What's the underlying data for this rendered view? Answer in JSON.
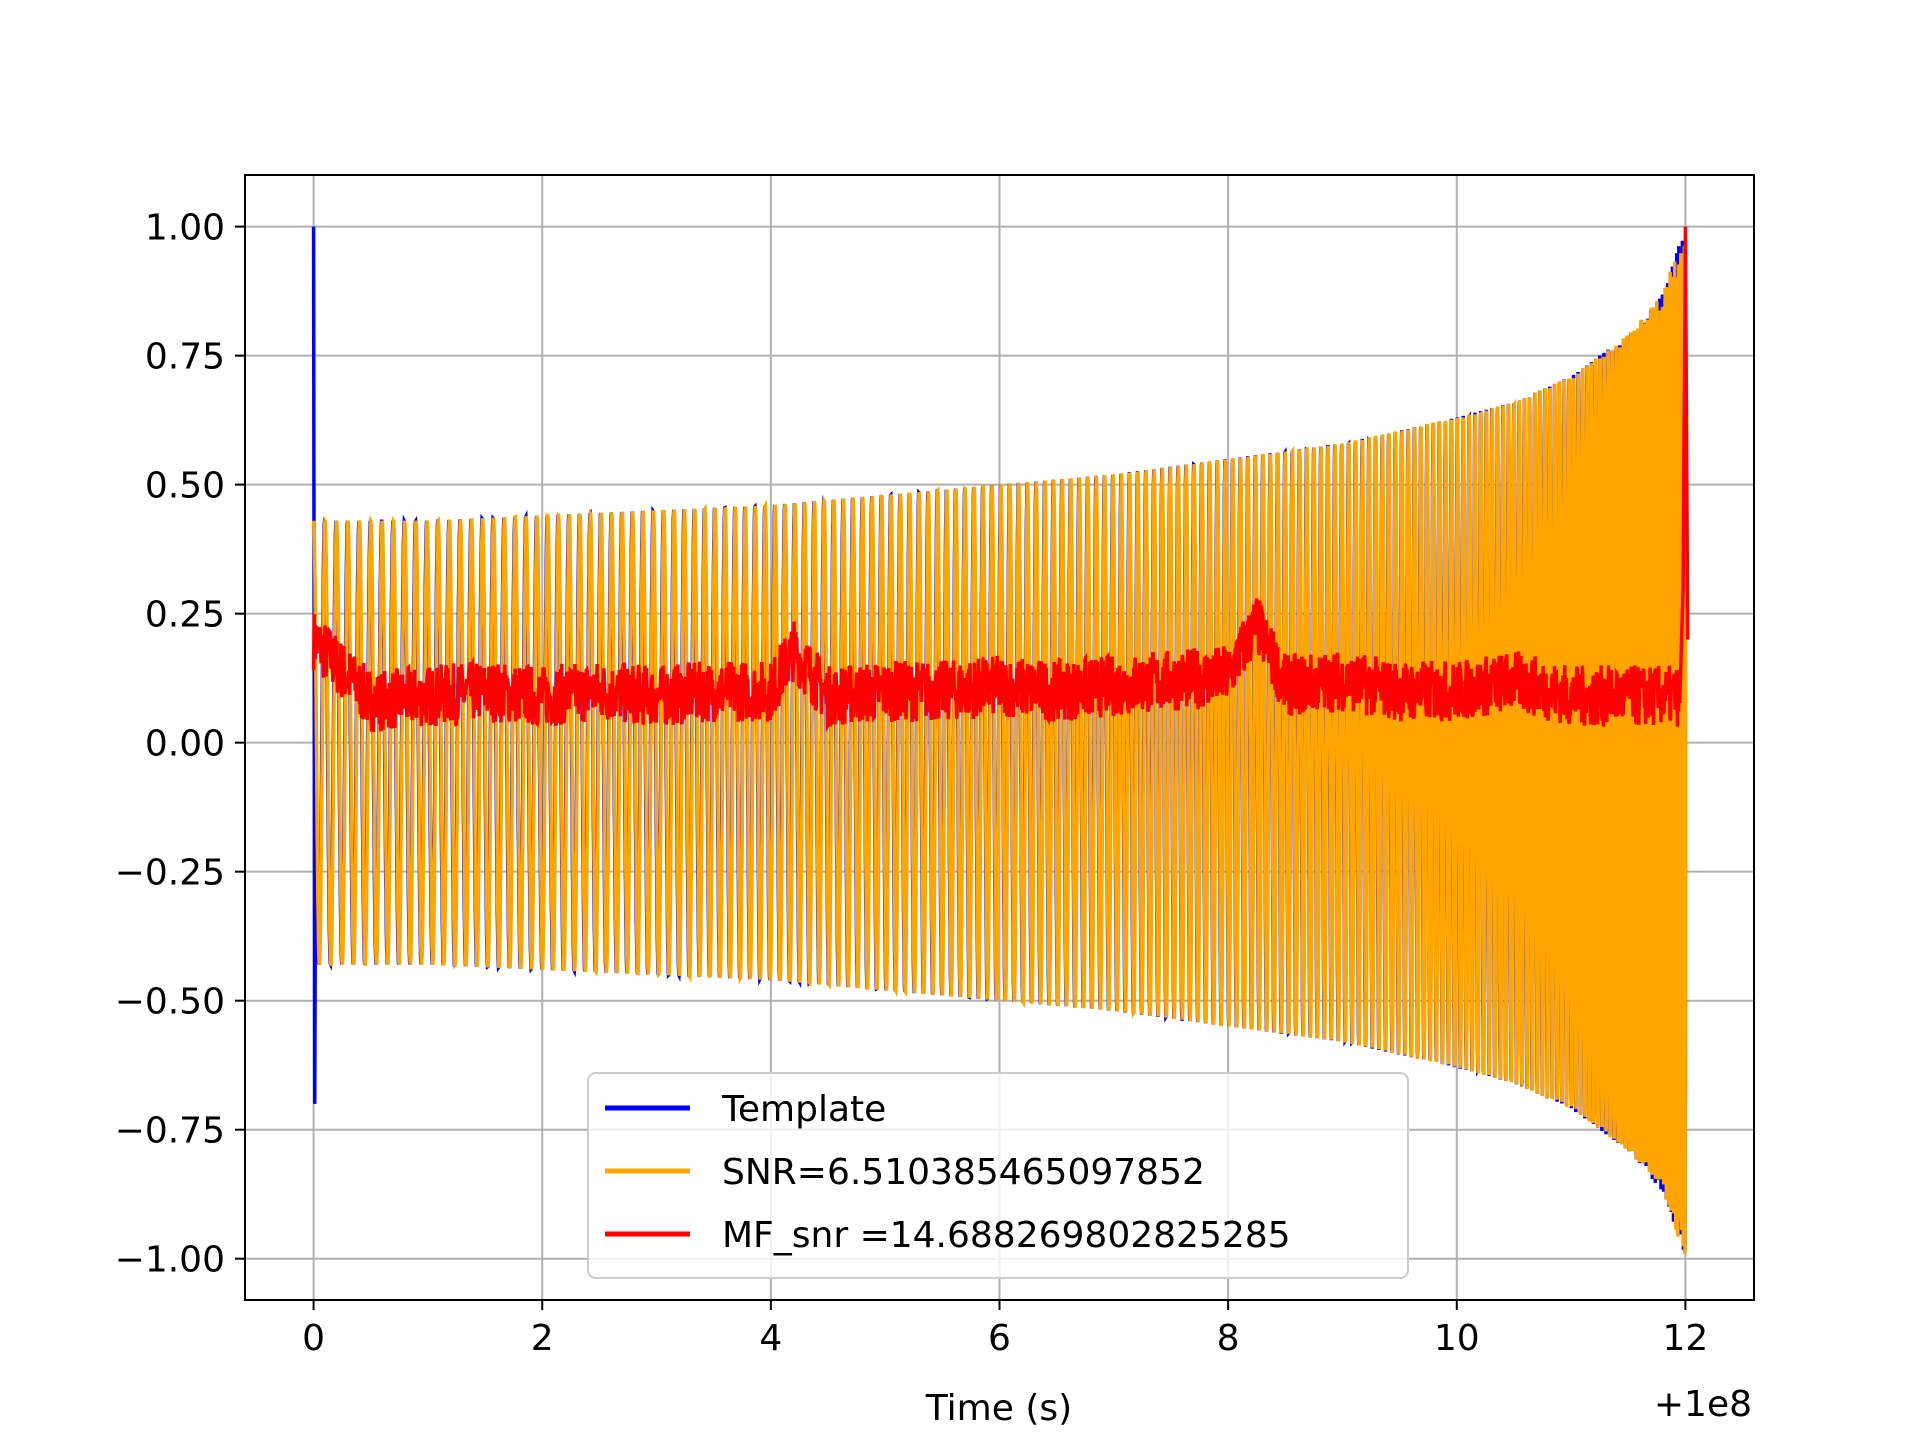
{
  "chart_data": {
    "type": "line",
    "title": "",
    "xlabel": "Time (s)",
    "ylabel": "",
    "x_offset_label": "+1e8",
    "xlim": [
      -0.6,
      12.6
    ],
    "ylim": [
      -1.08,
      1.1
    ],
    "xticks": [
      0,
      2,
      4,
      6,
      8,
      10,
      12
    ],
    "xtick_labels": [
      "0",
      "2",
      "4",
      "6",
      "8",
      "10",
      "12"
    ],
    "yticks": [
      1.0,
      0.75,
      0.5,
      0.25,
      0.0,
      -0.25,
      -0.5,
      -0.75,
      -1.0
    ],
    "ytick_labels": [
      "1.00",
      "0.75",
      "0.50",
      "0.25",
      "0.00",
      "−0.25",
      "−0.50",
      "−0.75",
      "−1.00"
    ],
    "grid": true,
    "legend_position": "bottom-center",
    "series": [
      {
        "name": "Template",
        "color": "#0000ff",
        "x": [
          0,
          0,
          0.02,
          1,
          2,
          3,
          4,
          5,
          6,
          7,
          8,
          9,
          10,
          10.5,
          11,
          11.5,
          11.8,
          12
        ],
        "y": [
          1.0,
          -0.7,
          0.43,
          0.43,
          0.44,
          0.45,
          0.46,
          0.48,
          0.5,
          0.52,
          0.55,
          0.58,
          0.63,
          0.66,
          0.71,
          0.79,
          0.87,
          1.0
        ]
      },
      {
        "name": "SNR=6.510385465097852",
        "color": "#ffa500",
        "x": [
          0,
          1,
          2,
          3,
          4,
          5,
          6,
          7,
          8,
          9,
          10,
          10.5,
          11,
          11.5,
          11.8,
          12
        ],
        "y": [
          0.43,
          0.43,
          0.44,
          0.45,
          0.46,
          0.48,
          0.5,
          0.52,
          0.55,
          0.58,
          0.63,
          0.66,
          0.71,
          0.79,
          0.87,
          1.0
        ]
      },
      {
        "name": "MF_snr =14.688269802825285",
        "color": "#ff0000",
        "x": [
          0,
          0.5,
          1,
          1.5,
          2,
          2.5,
          3,
          3.5,
          4,
          4.2,
          4.5,
          5,
          5.5,
          6,
          6.5,
          7,
          7.5,
          8,
          8.25,
          8.5,
          9,
          9.5,
          10,
          10.5,
          11,
          11.5,
          11.95,
          12
        ],
        "y": [
          0.2,
          0.08,
          0.09,
          0.1,
          0.09,
          0.1,
          0.09,
          0.1,
          0.1,
          0.18,
          0.09,
          0.1,
          0.1,
          0.11,
          0.1,
          0.11,
          0.12,
          0.13,
          0.23,
          0.11,
          0.12,
          0.1,
          0.1,
          0.12,
          0.09,
          0.09,
          0.09,
          1.0
        ]
      }
    ]
  }
}
